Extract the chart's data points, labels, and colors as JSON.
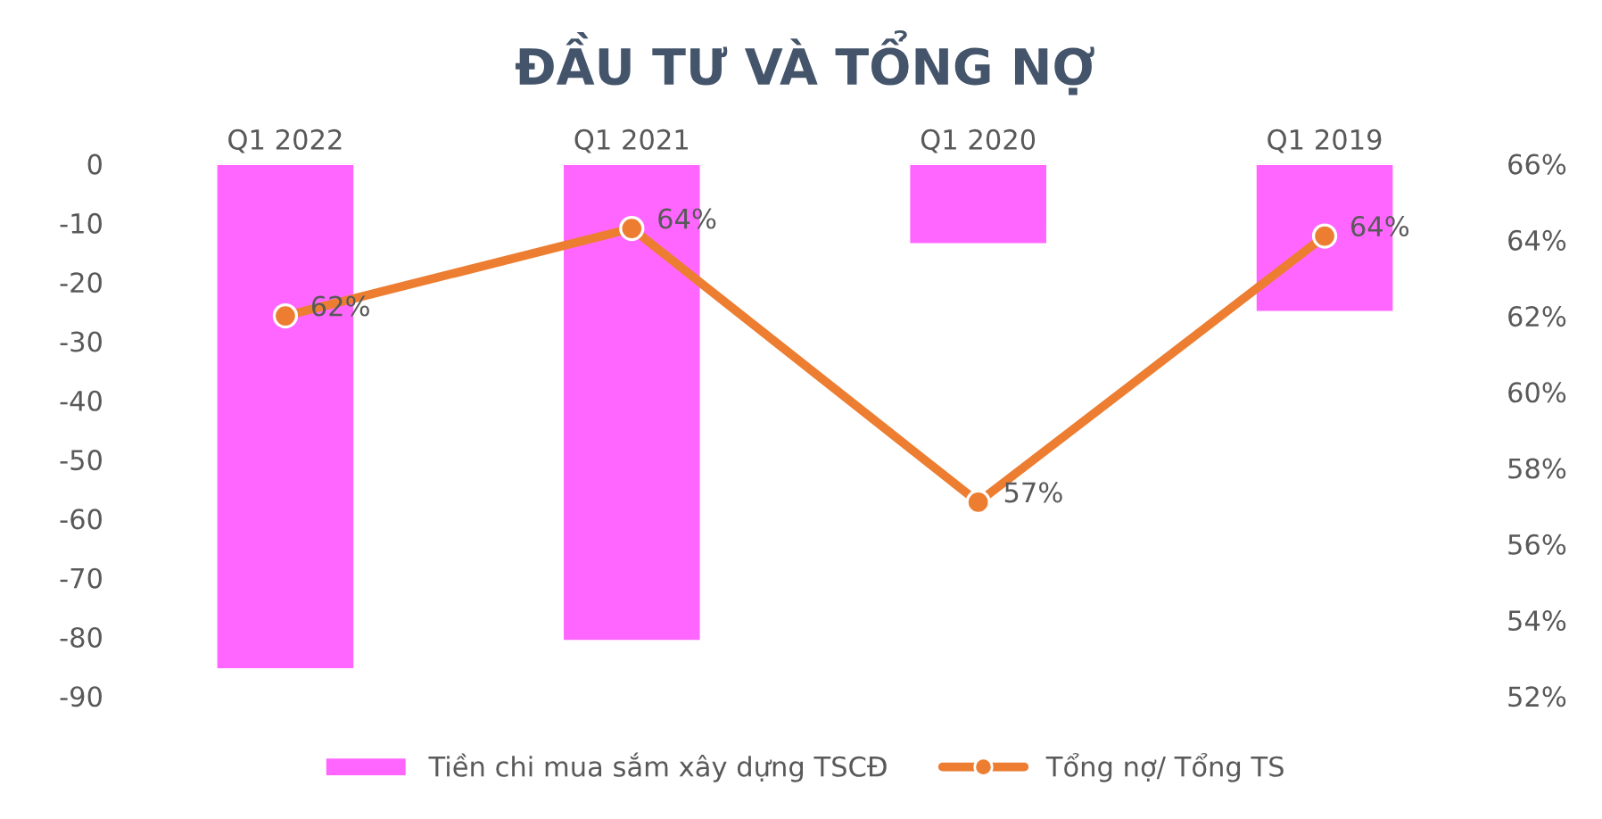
{
  "chart_data": {
    "type": "bar",
    "title": "ĐẦU TƯ VÀ TỔNG NỢ",
    "categories": [
      "Q1 2022",
      "Q1 2021",
      "Q1 2020",
      "Q1 2019"
    ],
    "series": [
      {
        "name": "Tiền chi mua sắm xây dựng TSCĐ",
        "color": "#ff66ff",
        "values": [
          -85.5,
          -80.7,
          -13.6,
          -25.1
        ]
      },
      {
        "name": "Tổng nợ/ Tổng TS",
        "type": "line",
        "axis": "y2",
        "color": "#ed7d31",
        "marker": "circle",
        "values": [
          62.0,
          64.3,
          57.1,
          64.1
        ],
        "value_labels": [
          "62%",
          "64%",
          "57%",
          "64%"
        ]
      }
    ],
    "ylim": [
      -90,
      0
    ],
    "yticks": [
      0,
      -10,
      -20,
      -30,
      -40,
      -50,
      -60,
      -70,
      -80,
      -90
    ],
    "y2lim": [
      52,
      66
    ],
    "y2ticks": [
      {
        "value": 52,
        "label": "52%"
      },
      {
        "value": 54,
        "label": "54%"
      },
      {
        "value": 56,
        "label": "56%"
      },
      {
        "value": 58,
        "label": "58%"
      },
      {
        "value": 60,
        "label": "60%"
      },
      {
        "value": 62,
        "label": "62%"
      },
      {
        "value": 64,
        "label": "64%"
      },
      {
        "value": 66,
        "label": "66%"
      }
    ],
    "grid": false,
    "legend": "bottom"
  }
}
